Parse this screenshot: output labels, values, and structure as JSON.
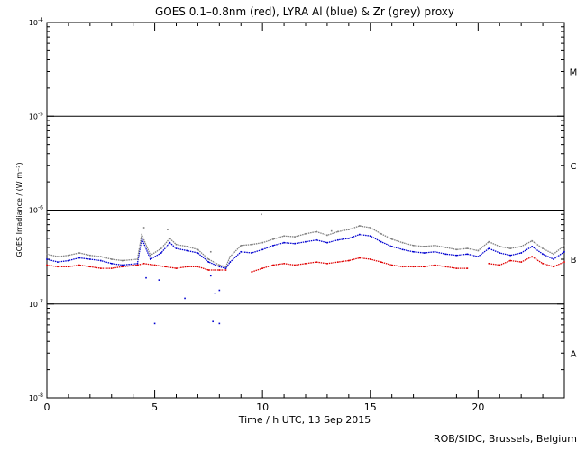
{
  "chart_data": {
    "type": "line",
    "title": "GOES 0.1–0.8nm (red), LYRA Al (blue) & Zr (grey) proxy",
    "xlabel": "Time / h UTC, 13 Sep 2015",
    "ylabel": "GOES Irradiance / (W m⁻²)",
    "y_scale": "log",
    "xlim": [
      0,
      24
    ],
    "ylim": [
      1e-08,
      0.0001
    ],
    "x_ticks": [
      0,
      5,
      10,
      15,
      20
    ],
    "x_tick_labels": [
      "0",
      "5",
      "10",
      "15",
      "20"
    ],
    "y_tick_labels": [
      {
        "mantissa": "10",
        "exponent": "-8",
        "value": 1e-08
      },
      {
        "mantissa": "10",
        "exponent": "-7",
        "value": 1e-07
      },
      {
        "mantissa": "10",
        "exponent": "-6",
        "value": 1e-06
      },
      {
        "mantissa": "10",
        "exponent": "-5",
        "value": 1e-05
      },
      {
        "mantissa": "10",
        "exponent": "-4",
        "value": 0.0001
      }
    ],
    "class_lines": [
      1e-07,
      1e-06,
      1e-05
    ],
    "flare_classes": [
      {
        "label": "A",
        "value": 3e-08
      },
      {
        "label": "B",
        "value": 3e-07
      },
      {
        "label": "C",
        "value": 3e-06
      },
      {
        "label": "M",
        "value": 3e-05
      }
    ],
    "series": [
      {
        "name": "GOES 0.1–0.8nm",
        "color": "#e00000",
        "points": [
          [
            0.0,
            2.6e-07
          ],
          [
            0.5,
            2.5e-07
          ],
          [
            1.0,
            2.5e-07
          ],
          [
            1.5,
            2.6e-07
          ],
          [
            2.0,
            2.5e-07
          ],
          [
            2.5,
            2.4e-07
          ],
          [
            3.0,
            2.4e-07
          ],
          [
            3.5,
            2.5e-07
          ],
          [
            4.2,
            2.6e-07
          ],
          [
            4.5,
            2.7e-07
          ],
          [
            5.0,
            2.6e-07
          ],
          [
            5.5,
            2.5e-07
          ],
          [
            6.0,
            2.4e-07
          ],
          [
            6.5,
            2.5e-07
          ],
          [
            7.0,
            2.5e-07
          ],
          [
            7.5,
            2.3e-07
          ],
          [
            8.0,
            2.3e-07
          ],
          [
            8.3,
            2.3e-07
          ],
          null,
          [
            9.5,
            2.2e-07
          ],
          [
            10.0,
            2.4e-07
          ],
          [
            10.5,
            2.6e-07
          ],
          [
            11.0,
            2.7e-07
          ],
          [
            11.5,
            2.6e-07
          ],
          [
            12.0,
            2.7e-07
          ],
          [
            12.5,
            2.8e-07
          ],
          [
            13.0,
            2.7e-07
          ],
          [
            13.5,
            2.8e-07
          ],
          [
            14.0,
            2.9e-07
          ],
          [
            14.5,
            3.1e-07
          ],
          [
            15.0,
            3e-07
          ],
          [
            15.5,
            2.8e-07
          ],
          [
            16.0,
            2.6e-07
          ],
          [
            16.5,
            2.5e-07
          ],
          [
            17.0,
            2.5e-07
          ],
          [
            17.5,
            2.5e-07
          ],
          [
            18.0,
            2.6e-07
          ],
          [
            18.5,
            2.5e-07
          ],
          [
            19.0,
            2.4e-07
          ],
          [
            19.5,
            2.4e-07
          ],
          null,
          [
            20.5,
            2.7e-07
          ],
          [
            21.0,
            2.6e-07
          ],
          [
            21.5,
            2.9e-07
          ],
          [
            22.0,
            2.8e-07
          ],
          [
            22.5,
            3.2e-07
          ],
          [
            23.0,
            2.7e-07
          ],
          [
            23.5,
            2.5e-07
          ],
          [
            24.0,
            2.8e-07
          ]
        ]
      },
      {
        "name": "LYRA Al",
        "color": "#0000d0",
        "points": [
          [
            0.0,
            3e-07
          ],
          [
            0.5,
            2.8e-07
          ],
          [
            1.0,
            2.9e-07
          ],
          [
            1.5,
            3.1e-07
          ],
          [
            2.0,
            3e-07
          ],
          [
            2.5,
            2.9e-07
          ],
          [
            3.0,
            2.7e-07
          ],
          [
            3.5,
            2.6e-07
          ],
          [
            4.2,
            2.7e-07
          ],
          [
            4.4,
            5e-07
          ],
          [
            4.8,
            3e-07
          ],
          [
            5.3,
            3.5e-07
          ],
          [
            5.7,
            4.5e-07
          ],
          [
            6.0,
            3.9e-07
          ],
          [
            6.5,
            3.7e-07
          ],
          [
            7.0,
            3.5e-07
          ],
          [
            7.5,
            2.8e-07
          ],
          [
            8.0,
            2.5e-07
          ],
          [
            8.3,
            2.4e-07
          ],
          [
            8.5,
            2.8e-07
          ],
          [
            9.0,
            3.6e-07
          ],
          [
            9.5,
            3.5e-07
          ],
          [
            10.0,
            3.8e-07
          ],
          [
            10.5,
            4.2e-07
          ],
          [
            11.0,
            4.5e-07
          ],
          [
            11.5,
            4.4e-07
          ],
          [
            12.0,
            4.6e-07
          ],
          [
            12.5,
            4.8e-07
          ],
          [
            13.0,
            4.5e-07
          ],
          [
            13.5,
            4.8e-07
          ],
          [
            14.0,
            5e-07
          ],
          [
            14.5,
            5.5e-07
          ],
          [
            15.0,
            5.3e-07
          ],
          [
            15.5,
            4.6e-07
          ],
          [
            16.0,
            4.1e-07
          ],
          [
            16.5,
            3.8e-07
          ],
          [
            17.0,
            3.6e-07
          ],
          [
            17.5,
            3.5e-07
          ],
          [
            18.0,
            3.6e-07
          ],
          [
            18.5,
            3.4e-07
          ],
          [
            19.0,
            3.3e-07
          ],
          [
            19.5,
            3.4e-07
          ],
          [
            20.0,
            3.2e-07
          ],
          [
            20.5,
            3.9e-07
          ],
          [
            21.0,
            3.5e-07
          ],
          [
            21.5,
            3.3e-07
          ],
          [
            22.0,
            3.5e-07
          ],
          [
            22.5,
            4.1e-07
          ],
          [
            23.0,
            3.4e-07
          ],
          [
            23.5,
            3e-07
          ],
          [
            24.0,
            3.6e-07
          ]
        ],
        "scatter": [
          [
            5.0,
            6.2e-08
          ],
          [
            6.4,
            1.15e-07
          ],
          [
            7.7,
            6.5e-08
          ],
          [
            8.0,
            6.2e-08
          ],
          [
            7.8,
            1.3e-07
          ],
          [
            8.0,
            1.4e-07
          ],
          [
            7.6,
            2e-07
          ],
          [
            5.2,
            1.8e-07
          ],
          [
            4.6,
            1.9e-07
          ]
        ]
      },
      {
        "name": "Zr",
        "color": "#808080",
        "points": [
          [
            0.0,
            3.4e-07
          ],
          [
            0.5,
            3.2e-07
          ],
          [
            1.0,
            3.3e-07
          ],
          [
            1.5,
            3.5e-07
          ],
          [
            2.0,
            3.3e-07
          ],
          [
            2.5,
            3.2e-07
          ],
          [
            3.0,
            3e-07
          ],
          [
            3.5,
            2.9e-07
          ],
          [
            4.2,
            3e-07
          ],
          [
            4.4,
            5.5e-07
          ],
          [
            4.8,
            3.3e-07
          ],
          [
            5.3,
            3.9e-07
          ],
          [
            5.7,
            5e-07
          ],
          [
            6.0,
            4.3e-07
          ],
          [
            6.5,
            4.1e-07
          ],
          [
            7.0,
            3.8e-07
          ],
          [
            7.5,
            3e-07
          ],
          [
            8.0,
            2.6e-07
          ],
          [
            8.3,
            2.5e-07
          ],
          [
            8.5,
            3.2e-07
          ],
          [
            9.0,
            4.2e-07
          ],
          [
            9.5,
            4.3e-07
          ],
          [
            10.0,
            4.5e-07
          ],
          [
            10.5,
            4.9e-07
          ],
          [
            11.0,
            5.3e-07
          ],
          [
            11.5,
            5.2e-07
          ],
          [
            12.0,
            5.6e-07
          ],
          [
            12.5,
            5.9e-07
          ],
          [
            13.0,
            5.4e-07
          ],
          [
            13.5,
            5.9e-07
          ],
          [
            14.0,
            6.2e-07
          ],
          [
            14.5,
            6.8e-07
          ],
          [
            15.0,
            6.5e-07
          ],
          [
            15.5,
            5.6e-07
          ],
          [
            16.0,
            4.9e-07
          ],
          [
            16.5,
            4.5e-07
          ],
          [
            17.0,
            4.2e-07
          ],
          [
            17.5,
            4.1e-07
          ],
          [
            18.0,
            4.2e-07
          ],
          [
            18.5,
            4e-07
          ],
          [
            19.0,
            3.8e-07
          ],
          [
            19.5,
            3.9e-07
          ],
          [
            20.0,
            3.7e-07
          ],
          [
            20.5,
            4.6e-07
          ],
          [
            21.0,
            4.1e-07
          ],
          [
            21.5,
            3.9e-07
          ],
          [
            22.0,
            4.1e-07
          ],
          [
            22.5,
            4.7e-07
          ],
          [
            23.0,
            3.9e-07
          ],
          [
            23.5,
            3.4e-07
          ],
          [
            24.0,
            4.2e-07
          ]
        ],
        "scatter": [
          [
            9.95,
            9e-07
          ],
          [
            4.5,
            6.5e-07
          ],
          [
            5.6,
            6.2e-07
          ],
          [
            13.2,
            6e-07
          ],
          [
            7.6,
            3.6e-07
          ]
        ]
      }
    ]
  },
  "footer": {
    "credit": "ROB/SIDC, Brussels, Belgium"
  }
}
